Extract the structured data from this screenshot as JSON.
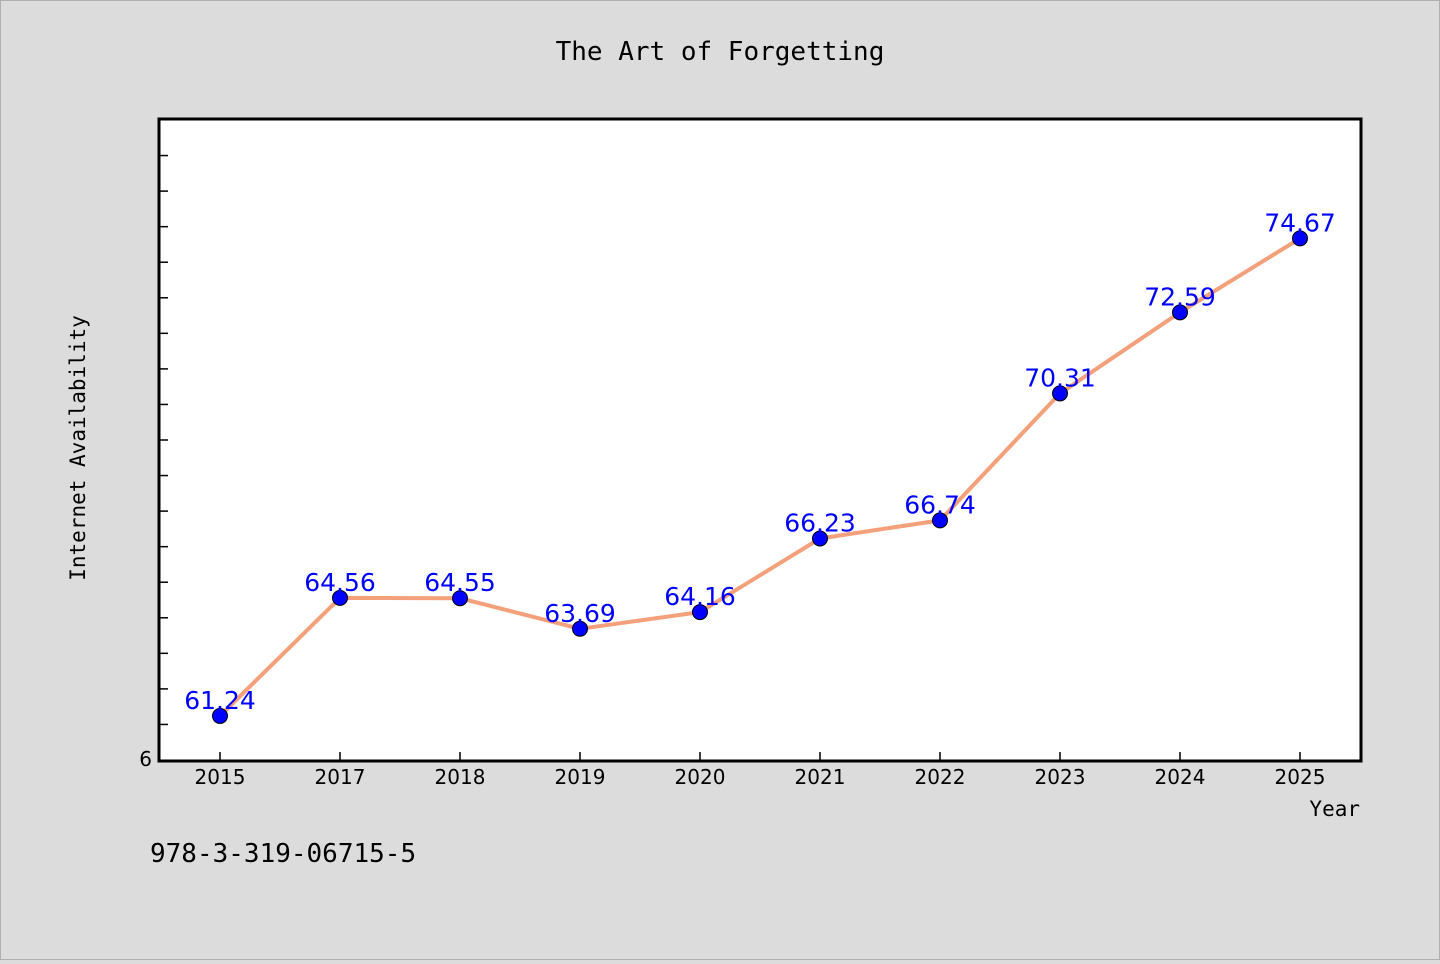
{
  "figure": {
    "caption": "978-3-319-06715-5"
  },
  "colors": {
    "background": "#dcdcdc",
    "plot_background": "#ffffff",
    "line": "#f4a07a",
    "marker": "#0000ff",
    "label": "#0000ff"
  },
  "chart_data": {
    "type": "line",
    "title": "The Art of Forgetting",
    "xlabel": "Year",
    "ylabel": "Internet Availability",
    "categories": [
      "2015",
      "2017",
      "2018",
      "2019",
      "2020",
      "2021",
      "2022",
      "2023",
      "2024",
      "2025"
    ],
    "series": [
      {
        "values": [
          61.24,
          64.56,
          64.55,
          63.69,
          64.16,
          66.23,
          66.74,
          70.31,
          72.59,
          74.67
        ],
        "labels": [
          "61.24",
          "64.56",
          "64.55",
          "63.69",
          "64.16",
          "66.23",
          "66.74",
          "70.31",
          "72.59",
          "74.67"
        ]
      }
    ],
    "y_tick_labels": [
      "6"
    ],
    "ylim": [
      60,
      78
    ],
    "grid": false,
    "legend": "none"
  }
}
